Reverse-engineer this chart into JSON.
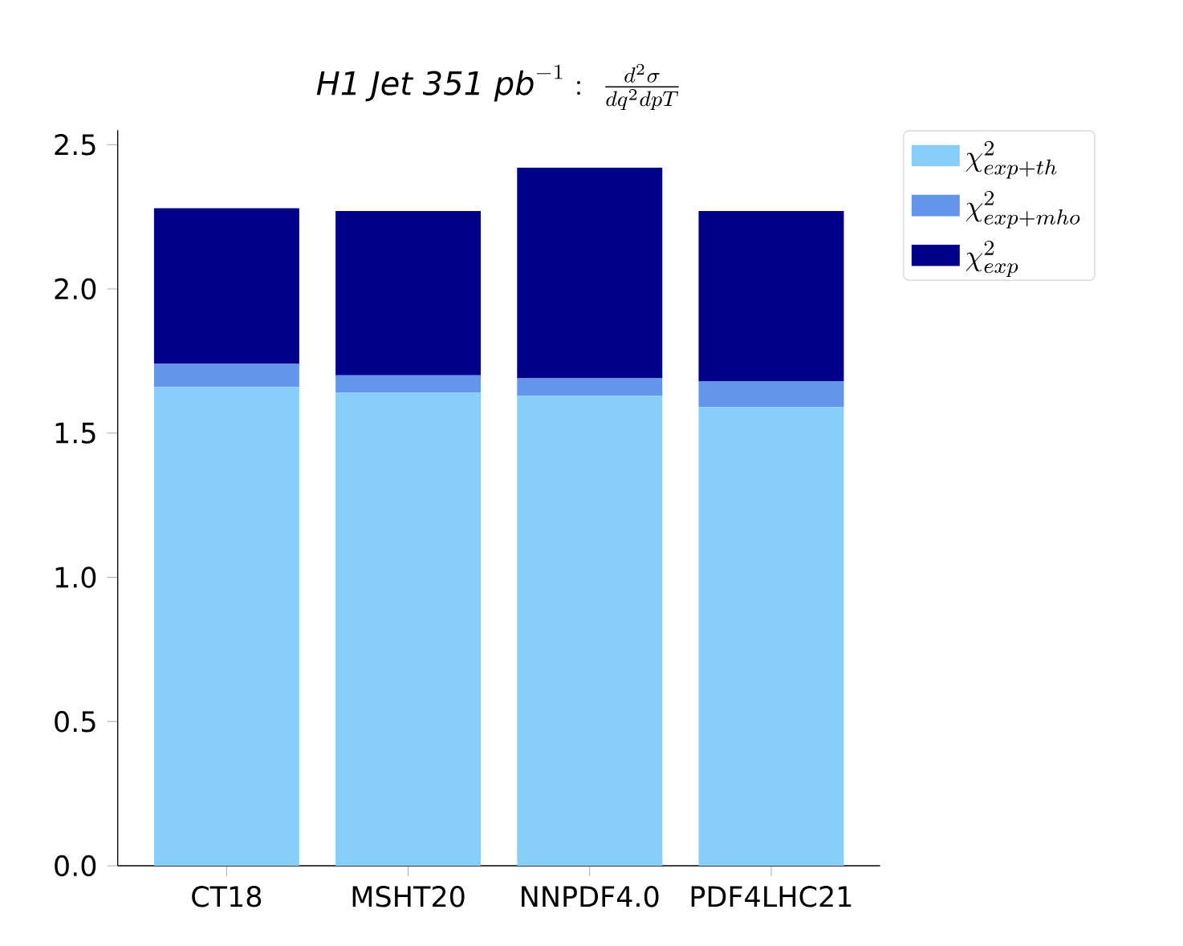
{
  "chart_data": {
    "type": "bar",
    "title": "\\mathit{H1\\ Jet\\ 351\\ pb}^{-1}:\\ \\frac{d^2\\sigma}{dq^2dpT}",
    "categories": [
      "CT18",
      "MSHT20",
      "NNPDF4.0",
      "PDF4LHC21"
    ],
    "stacked": true,
    "series": [
      {
        "name": "\\chi^2_{exp+th}",
        "color": "#87cefa",
        "values": [
          1.66,
          1.64,
          1.63,
          1.59
        ]
      },
      {
        "name": "\\chi^2_{exp+mho}",
        "color": "#6495ed",
        "values": [
          0.08,
          0.06,
          0.06,
          0.09
        ]
      },
      {
        "name": "\\chi^2_{exp}",
        "color": "#00008b",
        "values": [
          0.54,
          0.57,
          0.73,
          0.59
        ]
      }
    ],
    "ylim": [
      0,
      2.55
    ],
    "yticks": [
      {
        "value": 0,
        "label": "0.0"
      },
      0.5,
      {
        "value": 1,
        "label": "1.0"
      },
      1.5,
      {
        "value": 2,
        "label": "2.0"
      },
      2.5
    ],
    "legend": "top right"
  }
}
